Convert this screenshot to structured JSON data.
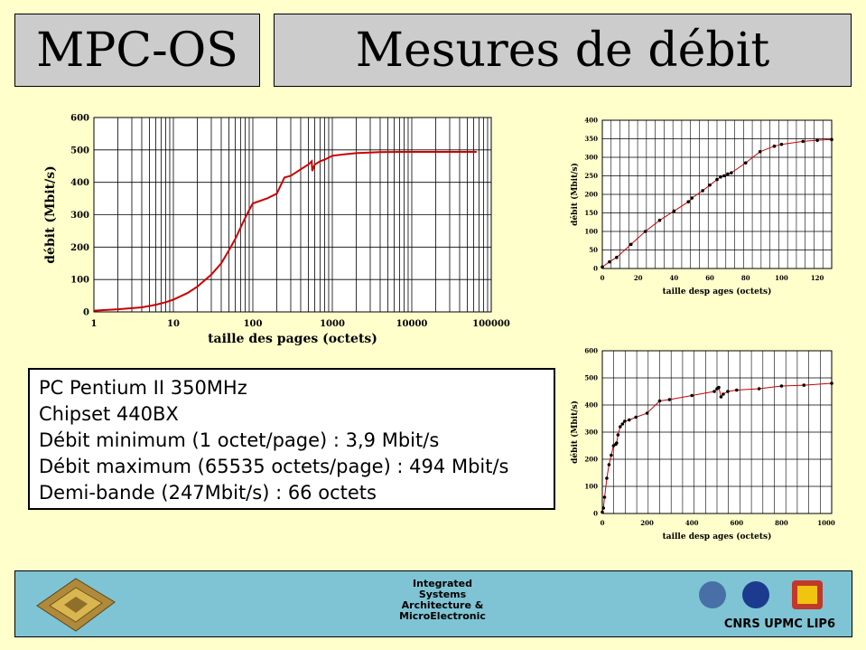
{
  "header": {
    "left_title": "MPC-OS",
    "right_title": "Mesures de débit"
  },
  "info": {
    "lines": [
      "PC Pentium II 350MHz",
      "Chipset 440BX",
      "Débit minimum (1 octet/page) : 3,9 Mbit/s",
      "Débit maximum (65535 octets/page) : 494 Mbit/s",
      "Demi-bande (247Mbit/s) : 66 octets"
    ]
  },
  "footer": {
    "center_lines": [
      "Integrated",
      "Systems",
      "Architecture &",
      "MicroElectronic"
    ],
    "logos_label": "CNRS UPMC LIP6"
  },
  "colors": {
    "background": "#ffffcc",
    "title_box": "#cccccc",
    "footer": "#7fc4d4",
    "curve": "#cc0000"
  },
  "chart_data": [
    {
      "type": "line",
      "xscale": "log",
      "xlabel": "taille des pages (octets)",
      "ylabel": "débit (Mbit/s)",
      "xlim": [
        1,
        100000
      ],
      "ylim": [
        0,
        600
      ],
      "xticks": [
        "1",
        "10",
        "100",
        "1000",
        "10000",
        "100000"
      ],
      "yticks": [
        "0",
        "100",
        "200",
        "300",
        "400",
        "500",
        "600"
      ],
      "grid": true,
      "x": [
        1,
        2,
        4,
        6,
        8,
        10,
        15,
        20,
        30,
        40,
        50,
        60,
        70,
        80,
        90,
        100,
        150,
        200,
        250,
        300,
        400,
        500,
        550,
        560,
        600,
        700,
        800,
        1000,
        1500,
        2000,
        4000,
        8000,
        16000,
        32000,
        65535
      ],
      "y": [
        4,
        8,
        14,
        22,
        30,
        38,
        58,
        78,
        115,
        150,
        190,
        225,
        260,
        290,
        315,
        335,
        350,
        365,
        415,
        420,
        440,
        455,
        465,
        435,
        455,
        465,
        470,
        482,
        487,
        490,
        493,
        494,
        494,
        494,
        494
      ]
    },
    {
      "type": "line",
      "xlabel": "taille desp ages (octets)",
      "ylabel": "débit (Mbit/s)",
      "xlim": [
        0,
        128
      ],
      "ylim": [
        0,
        400
      ],
      "xticks": [
        "0",
        "20",
        "40",
        "60",
        "80",
        "100",
        "120"
      ],
      "yticks": [
        "0",
        "50",
        "100",
        "150",
        "200",
        "250",
        "300",
        "350",
        "400"
      ],
      "grid": true,
      "x": [
        0,
        4,
        8,
        16,
        24,
        32,
        40,
        48,
        50,
        56,
        60,
        64,
        66,
        68,
        70,
        72,
        80,
        88,
        96,
        100,
        112,
        120,
        128
      ],
      "y": [
        4,
        18,
        30,
        65,
        100,
        130,
        155,
        180,
        190,
        210,
        225,
        240,
        247,
        250,
        255,
        258,
        285,
        315,
        330,
        335,
        343,
        346,
        348
      ]
    },
    {
      "type": "line",
      "xlabel": "taille desp ages (octets)",
      "ylabel": "débit (Mbit/s)",
      "xlim": [
        0,
        1024
      ],
      "ylim": [
        0,
        600
      ],
      "xticks": [
        "0",
        "200",
        "400",
        "600",
        "800",
        "1000"
      ],
      "yticks": [
        "0",
        "100",
        "200",
        "300",
        "400",
        "500",
        "600"
      ],
      "grid": true,
      "x": [
        0,
        5,
        10,
        20,
        30,
        40,
        50,
        60,
        64,
        70,
        80,
        90,
        100,
        120,
        150,
        200,
        256,
        300,
        400,
        500,
        512,
        520,
        530,
        540,
        560,
        600,
        700,
        800,
        900,
        1024
      ],
      "y": [
        5,
        20,
        60,
        130,
        180,
        215,
        250,
        255,
        260,
        290,
        320,
        330,
        340,
        345,
        355,
        370,
        415,
        420,
        435,
        450,
        460,
        465,
        430,
        440,
        450,
        455,
        460,
        470,
        473,
        480
      ]
    }
  ]
}
